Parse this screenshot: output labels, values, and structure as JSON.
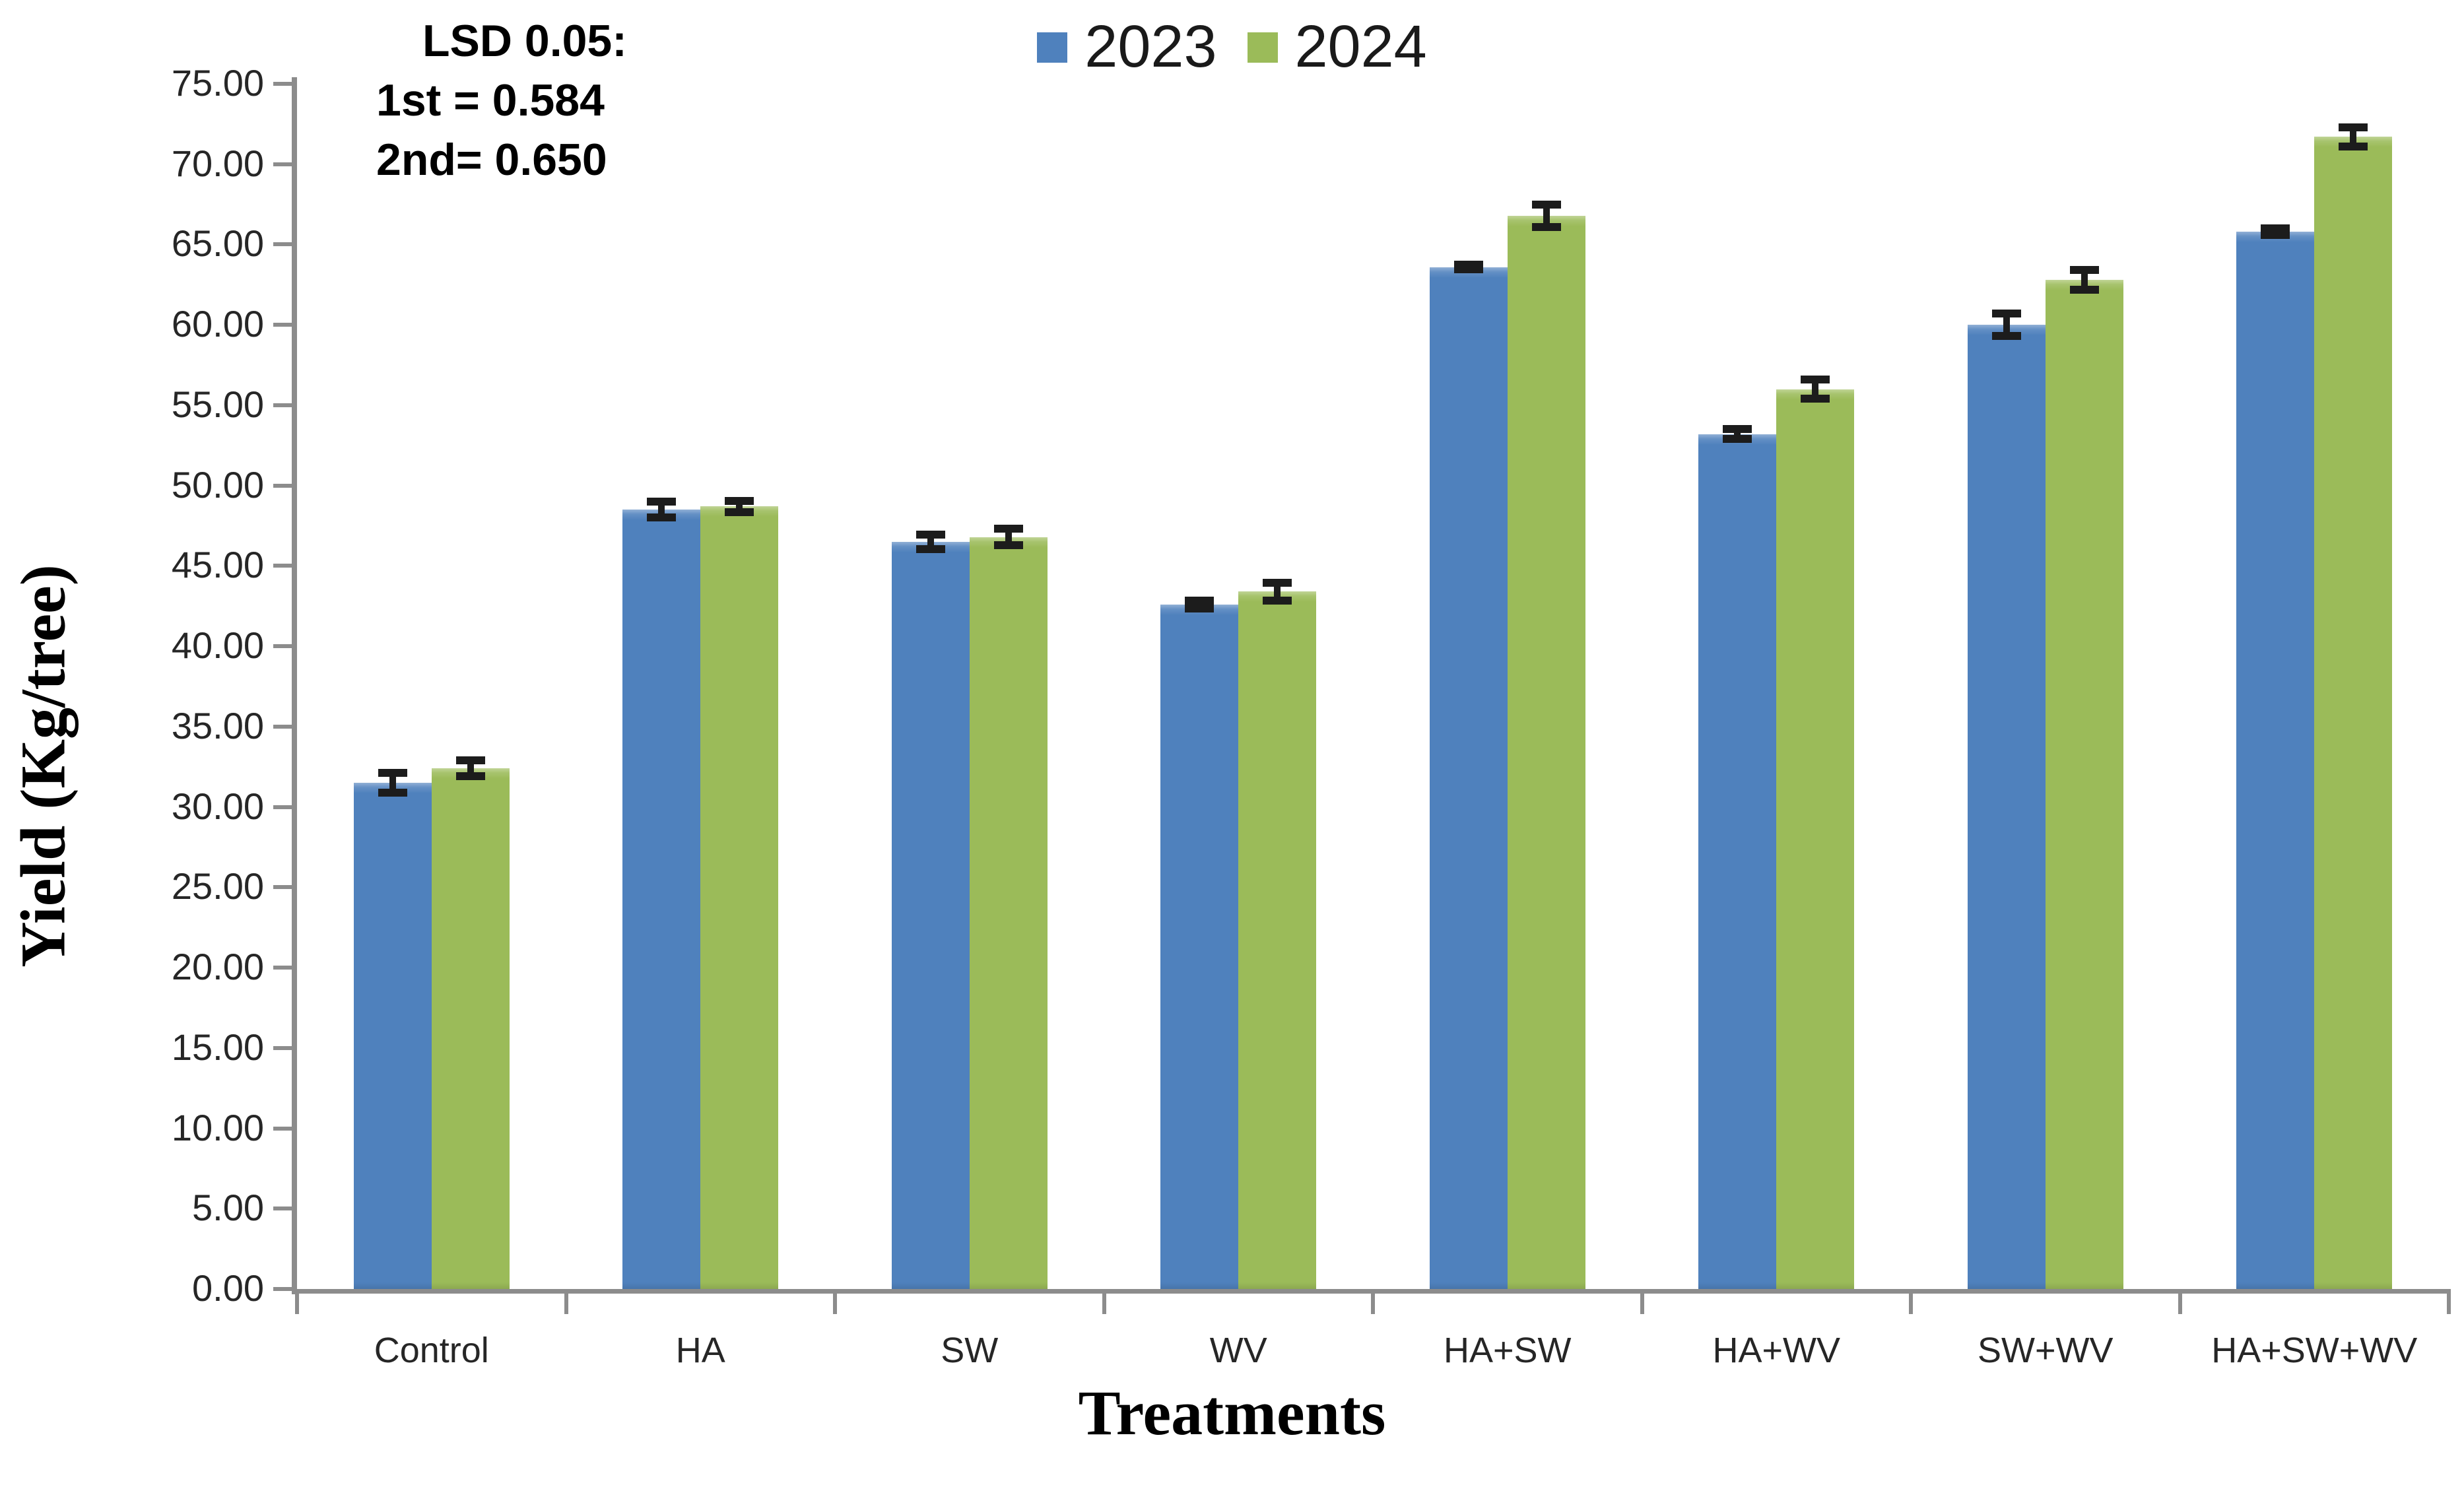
{
  "annotation": {
    "line1": "LSD 0.05:",
    "line2": "1st = 0.584",
    "line3": "2nd= 0.650"
  },
  "colors": {
    "series_2023": "#4F81BD",
    "series_2024": "#9BBB59",
    "axis_line": "#8c8c8c",
    "error_bar": "#1c1c1c",
    "text": "#000000"
  },
  "chart_data": {
    "type": "bar",
    "title": "",
    "xlabel": "Treatments",
    "ylabel": "Yield (Kg/tree)",
    "categories": [
      "Control",
      "HA",
      "SW",
      "WV",
      "HA+SW",
      "HA+WV",
      "SW+WV",
      "HA+SW+WV"
    ],
    "series": [
      {
        "name": "2023",
        "color": "#4F81BD",
        "values": [
          31.5,
          48.5,
          46.5,
          42.6,
          63.6,
          53.2,
          60.0,
          65.8
        ],
        "errors": [
          0.6,
          0.5,
          0.45,
          0.25,
          0.15,
          0.3,
          0.7,
          0.2
        ]
      },
      {
        "name": "2024",
        "color": "#9BBB59",
        "values": [
          32.4,
          48.7,
          46.8,
          43.4,
          66.8,
          56.0,
          62.8,
          71.7
        ],
        "errors": [
          0.5,
          0.35,
          0.5,
          0.55,
          0.7,
          0.6,
          0.6,
          0.6
        ]
      }
    ],
    "ylim": [
      0,
      75
    ],
    "ytick_step": 5,
    "ytick_labels": [
      "0.00",
      "5.00",
      "10.00",
      "15.00",
      "20.00",
      "25.00",
      "30.00",
      "35.00",
      "40.00",
      "45.00",
      "50.00",
      "55.00",
      "60.00",
      "65.00",
      "70.00",
      "75.00"
    ],
    "grid": false,
    "legend_position": "top-center",
    "error_bars": true,
    "annotations": [
      "LSD 0.05:",
      "1st = 0.584",
      "2nd= 0.650"
    ]
  }
}
